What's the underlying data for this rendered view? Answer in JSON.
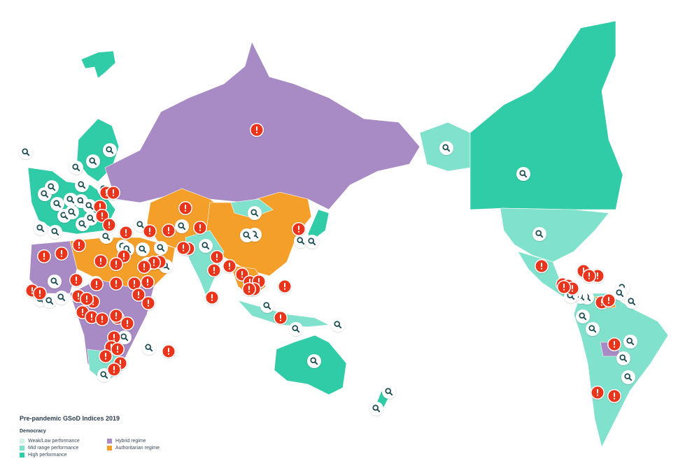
{
  "colors": {
    "weak_low": "#d3f3ea",
    "mid_range": "#80e1cc",
    "high": "#2fcca7",
    "hybrid": "#a88ac4",
    "authoritarian": "#f59f2b",
    "alert": "#e8341c",
    "search": "#1f4f55"
  },
  "legend": {
    "title": "Pre-pandemic GSoD Indices 2019",
    "subtitle": "Democracy",
    "items": [
      {
        "key": "weak_low",
        "label": "Weak/Low performance"
      },
      {
        "key": "mid_range",
        "label": "Mid range performance"
      },
      {
        "key": "high",
        "label": "High performance"
      },
      {
        "key": "hybrid",
        "label": "Hybrid regime"
      },
      {
        "key": "authoritarian",
        "label": "Authoritarian regime"
      }
    ]
  },
  "icons": {
    "alert": "exclamation-icon",
    "search": "magnifier-icon"
  }
}
